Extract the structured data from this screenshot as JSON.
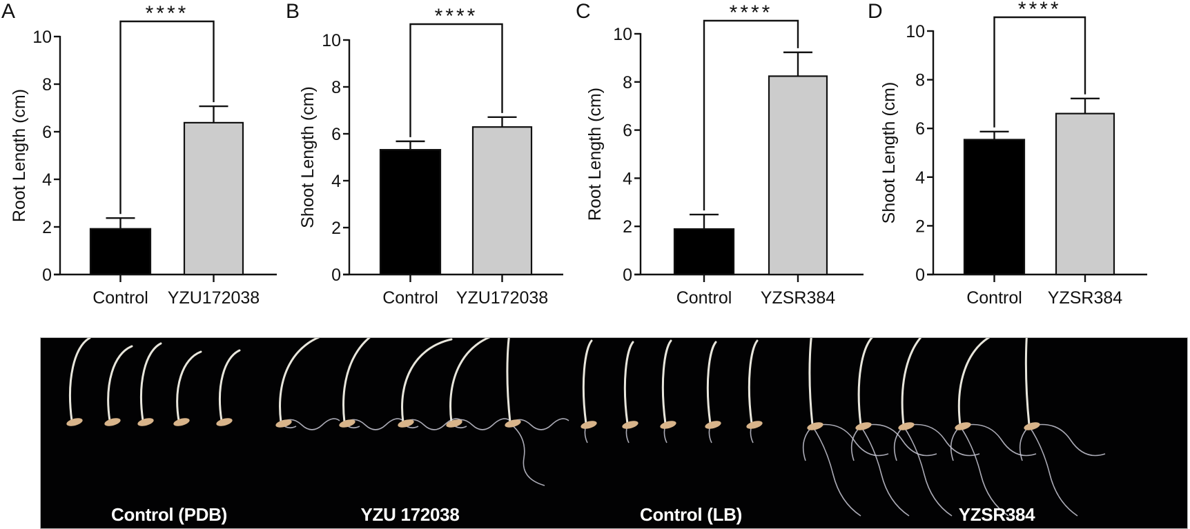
{
  "chart_data": [
    {
      "panel": "A",
      "type": "bar",
      "categories": [
        "Control",
        "YZU172038"
      ],
      "values": [
        1.92,
        6.38
      ],
      "error_bars": [
        0.45,
        0.69
      ],
      "bar_colors": [
        "#000000",
        "#cccccc"
      ],
      "significance": "****",
      "title": "",
      "xlabel": "",
      "ylabel": "Root Length (cm)",
      "ylim": [
        0,
        10
      ],
      "yticks": [
        0,
        2,
        4,
        6,
        8,
        10
      ],
      "grid": false
    },
    {
      "panel": "B",
      "type": "bar",
      "categories": [
        "Control",
        "YZU172038"
      ],
      "values": [
        5.32,
        6.29
      ],
      "error_bars": [
        0.36,
        0.42
      ],
      "bar_colors": [
        "#000000",
        "#cccccc"
      ],
      "significance": "****",
      "title": "",
      "xlabel": "",
      "ylabel": "Shoot Length (cm)",
      "ylim": [
        0,
        10
      ],
      "yticks": [
        0,
        2,
        4,
        6,
        8,
        10
      ],
      "grid": false
    },
    {
      "panel": "C",
      "type": "bar",
      "categories": [
        "Control",
        "YZSR384"
      ],
      "values": [
        1.89,
        8.24
      ],
      "error_bars": [
        0.6,
        0.99
      ],
      "bar_colors": [
        "#000000",
        "#cccccc"
      ],
      "significance": "****",
      "title": "",
      "xlabel": "",
      "ylabel": "Root Length (cm)",
      "ylim": [
        0,
        10
      ],
      "yticks": [
        0,
        2,
        4,
        6,
        8,
        10
      ],
      "grid": false
    },
    {
      "panel": "D",
      "type": "bar",
      "categories": [
        "Control",
        "YZSR384"
      ],
      "values": [
        5.54,
        6.61
      ],
      "error_bars": [
        0.33,
        0.62
      ],
      "bar_colors": [
        "#000000",
        "#cccccc"
      ],
      "significance": "****",
      "title": "",
      "xlabel": "",
      "ylabel": "Shoot Length (cm)",
      "ylim": [
        0,
        10
      ],
      "yticks": [
        0,
        2,
        4,
        6,
        8,
        10
      ],
      "grid": false
    }
  ],
  "photo": {
    "captions": [
      "Control (PDB)",
      "YZU 172038",
      "Control (LB)",
      "YZSR384"
    ],
    "background": "#020203",
    "seedling_color": "#e8e6dc",
    "seed_color": "#d8b48a"
  }
}
